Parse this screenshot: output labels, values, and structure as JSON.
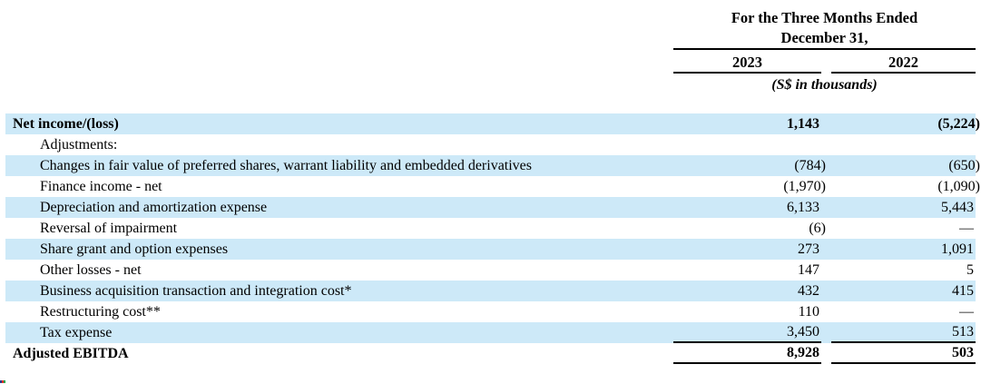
{
  "header": {
    "period_title_line1": "For the Three Months Ended",
    "period_title_line2": "December 31,",
    "columns": [
      "2023",
      "2022"
    ],
    "units_note": "(S$ in thousands)"
  },
  "table": {
    "column_headers": [
      "",
      "2023",
      "2022"
    ],
    "rows": [
      {
        "label": "Net income/(loss)",
        "y2023": "1,143",
        "y2022": "(5,224)",
        "bold": true,
        "highlight": true,
        "indent": false,
        "rule": false
      },
      {
        "label": "Adjustments:",
        "y2023": "",
        "y2022": "",
        "bold": false,
        "highlight": false,
        "indent": true,
        "rule": false
      },
      {
        "label": "Changes in fair value of preferred shares, warrant liability and embedded derivatives",
        "y2023": "(784)",
        "y2022": "(650)",
        "bold": false,
        "highlight": true,
        "indent": true,
        "rule": false
      },
      {
        "label": "Finance income - net",
        "y2023": "(1,970)",
        "y2022": "(1,090)",
        "bold": false,
        "highlight": false,
        "indent": true,
        "rule": false
      },
      {
        "label": "Depreciation and amortization expense",
        "y2023": "6,133",
        "y2022": "5,443",
        "bold": false,
        "highlight": true,
        "indent": true,
        "rule": false
      },
      {
        "label": "Reversal of impairment",
        "y2023": "(6)",
        "y2022": "—",
        "bold": false,
        "highlight": false,
        "indent": true,
        "rule": false
      },
      {
        "label": "Share grant and option expenses",
        "y2023": "273",
        "y2022": "1,091",
        "bold": false,
        "highlight": true,
        "indent": true,
        "rule": false
      },
      {
        "label": "Other losses - net",
        "y2023": "147",
        "y2022": "5",
        "bold": false,
        "highlight": false,
        "indent": true,
        "rule": false
      },
      {
        "label": "Business acquisition transaction and integration cost*",
        "y2023": "432",
        "y2022": "415",
        "bold": false,
        "highlight": true,
        "indent": true,
        "rule": false
      },
      {
        "label": "Restructuring cost**",
        "y2023": "110",
        "y2022": "—",
        "bold": false,
        "highlight": false,
        "indent": true,
        "rule": false
      },
      {
        "label": "Tax expense",
        "y2023": "3,450",
        "y2022": "513",
        "bold": false,
        "highlight": true,
        "indent": true,
        "rule": true
      },
      {
        "label": "Adjusted EBITDA",
        "y2023": "8,928",
        "y2022": "503",
        "bold": true,
        "highlight": false,
        "indent": false,
        "rule": true
      }
    ]
  },
  "colors": {
    "highlight": "#cde9f8",
    "rule": "#000000",
    "artifact_colors": [
      "#2b3990",
      "#ee3124",
      "#00a651"
    ]
  }
}
